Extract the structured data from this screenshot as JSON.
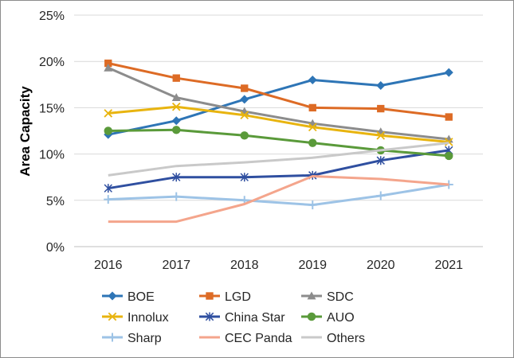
{
  "chart_data": {
    "type": "line",
    "title": "",
    "xlabel": "",
    "ylabel": "Area Capacity",
    "x": [
      "2016",
      "2017",
      "2018",
      "2019",
      "2020",
      "2021"
    ],
    "ylim": [
      0,
      25
    ],
    "yticks": [
      0,
      5,
      10,
      15,
      20,
      25
    ],
    "ytick_labels": [
      "0%",
      "5%",
      "10%",
      "15%",
      "20%",
      "25%"
    ],
    "grid": "horizontal",
    "legend_position": "bottom",
    "series": [
      {
        "name": "BOE",
        "color": "#2e75b6",
        "marker": "diamond",
        "values": [
          12.1,
          13.6,
          15.9,
          18.0,
          17.4,
          18.8
        ]
      },
      {
        "name": "LGD",
        "color": "#dd6b25",
        "marker": "square",
        "values": [
          19.8,
          18.2,
          17.1,
          15.0,
          14.9,
          14.0
        ]
      },
      {
        "name": "SDC",
        "color": "#8c8c8c",
        "marker": "triangle",
        "values": [
          19.3,
          16.1,
          14.6,
          13.3,
          12.4,
          11.6
        ]
      },
      {
        "name": "Innolux",
        "color": "#e8b40f",
        "marker": "x",
        "values": [
          14.4,
          15.1,
          14.2,
          12.9,
          12.0,
          11.3
        ]
      },
      {
        "name": "China Star",
        "color": "#2f4fa0",
        "marker": "star",
        "values": [
          6.3,
          7.5,
          7.5,
          7.7,
          9.3,
          10.4
        ]
      },
      {
        "name": "AUO",
        "color": "#5a9a3a",
        "marker": "circle",
        "values": [
          12.5,
          12.6,
          12.0,
          11.2,
          10.4,
          9.8
        ]
      },
      {
        "name": "Sharp",
        "color": "#9dc3e6",
        "marker": "plus",
        "values": [
          5.1,
          5.4,
          5.0,
          4.5,
          5.5,
          6.7
        ]
      },
      {
        "name": "CEC Panda",
        "color": "#f4a58c",
        "marker": "none",
        "values": [
          2.7,
          2.7,
          4.6,
          7.6,
          7.3,
          6.7
        ]
      },
      {
        "name": "Others",
        "color": "#c9c9c9",
        "marker": "none",
        "values": [
          7.7,
          8.7,
          9.1,
          9.6,
          10.4,
          11.2
        ]
      }
    ]
  }
}
